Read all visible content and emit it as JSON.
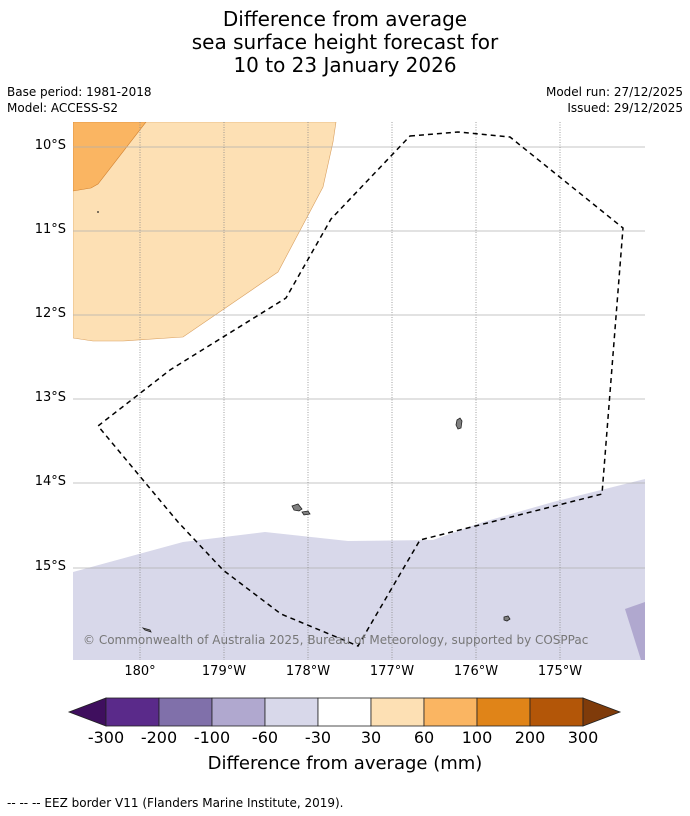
{
  "title": {
    "line1": "Difference from average",
    "line2": "sea surface height forecast for",
    "line3": "10 to 23 January 2026"
  },
  "meta": {
    "base_period": "Base period: 1981-2018",
    "model": "Model: ACCESS-S2",
    "model_run": "Model run: 27/12/2025",
    "issued": "Issued: 29/12/2025"
  },
  "map": {
    "lat_labels": [
      "10°S",
      "11°S",
      "12°S",
      "13°S",
      "14°S",
      "15°S"
    ],
    "lon_labels": [
      "180°",
      "179°W",
      "178°W",
      "177°W",
      "176°W",
      "175°W"
    ],
    "copyright": "© Commonwealth of Australia 2025, Bureau of Meteorology, supported by COSPPac"
  },
  "colorbar": {
    "ticks": [
      "-300",
      "-200",
      "-100",
      "-60",
      "-30",
      "30",
      "60",
      "100",
      "200",
      "300"
    ],
    "colors": [
      "#3f0f5e",
      "#5a2a8a",
      "#8070aa",
      "#b0a8cf",
      "#d8d8ea",
      "#ffffff",
      "#fde0b4",
      "#fab562",
      "#e08418",
      "#b35608",
      "#7f3b0a"
    ],
    "label": "Difference from average (mm)"
  },
  "footnote": "-- -- -- EEZ border V11 (Flanders Marine Institute, 2019)."
}
